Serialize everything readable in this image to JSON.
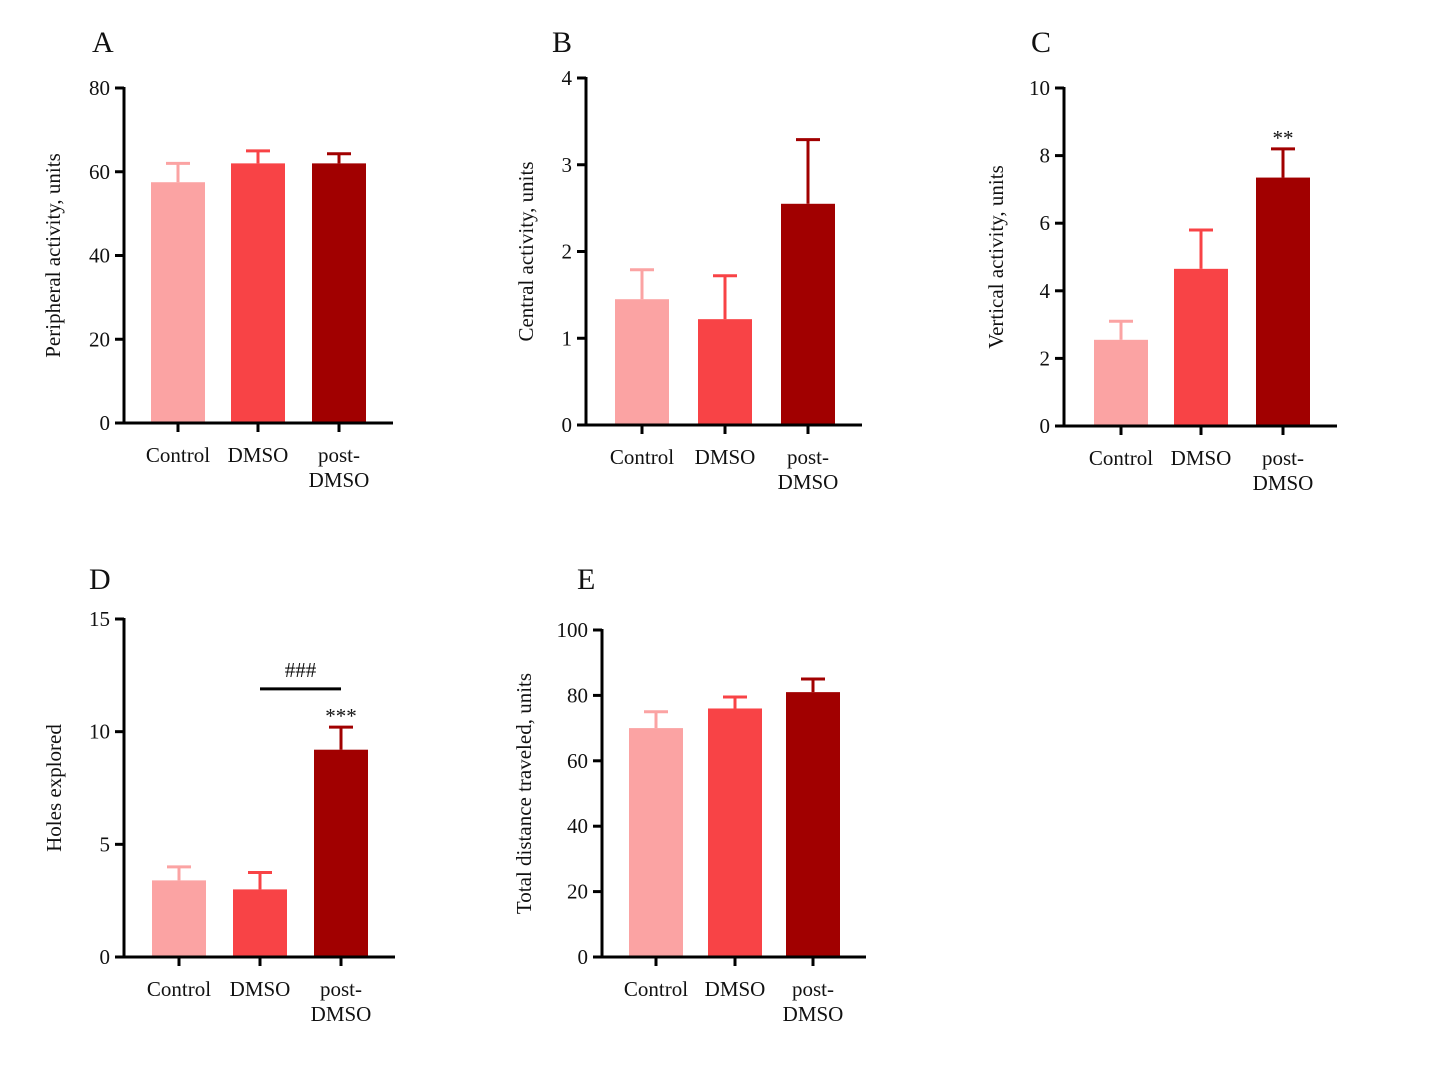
{
  "colors": {
    "Control": "#fba3a3",
    "DMSO": "#f84346",
    "post-DMSO": "#a10000",
    "axis": "#000000"
  },
  "chart_data": [
    {
      "type": "bar",
      "panel": "A",
      "ylabel": "Peripheral activity, units",
      "categories": [
        "Control",
        "DMSO",
        "post-DMSO"
      ],
      "category_lines": [
        [
          "Control"
        ],
        [
          "DMSO"
        ],
        [
          "post-",
          "DMSO"
        ]
      ],
      "values": [
        57.5,
        62,
        62
      ],
      "errors": [
        4.5,
        3,
        2.3
      ],
      "ylim": [
        0,
        80
      ],
      "yticks": [
        0,
        20,
        40,
        60,
        80
      ],
      "annotations": []
    },
    {
      "type": "bar",
      "panel": "B",
      "ylabel": "Central activity, units",
      "categories": [
        "Control",
        "DMSO",
        "post-DMSO"
      ],
      "category_lines": [
        [
          "Control"
        ],
        [
          "DMSO"
        ],
        [
          "post-",
          "DMSO"
        ]
      ],
      "values": [
        1.45,
        1.22,
        2.55
      ],
      "errors": [
        0.34,
        0.5,
        0.74
      ],
      "ylim": [
        0,
        4
      ],
      "yticks": [
        0,
        1,
        2,
        3,
        4
      ],
      "annotations": []
    },
    {
      "type": "bar",
      "panel": "C",
      "ylabel": "Vertical activity, units",
      "categories": [
        "Control",
        "DMSO",
        "post-DMSO"
      ],
      "category_lines": [
        [
          "Control"
        ],
        [
          "DMSO"
        ],
        [
          "post-",
          "DMSO"
        ]
      ],
      "values": [
        2.55,
        4.65,
        7.35
      ],
      "errors": [
        0.55,
        1.15,
        0.85
      ],
      "ylim": [
        0,
        10
      ],
      "yticks": [
        0,
        2,
        4,
        6,
        8,
        10
      ],
      "annotations": [
        {
          "text": "**",
          "bar": 2
        }
      ]
    },
    {
      "type": "bar",
      "panel": "D",
      "ylabel": "Holes explored",
      "categories": [
        "Control",
        "DMSO",
        "post-DMSO"
      ],
      "category_lines": [
        [
          "Control"
        ],
        [
          "DMSO"
        ],
        [
          "post-",
          "DMSO"
        ]
      ],
      "values": [
        3.4,
        3.0,
        9.2
      ],
      "errors": [
        0.6,
        0.75,
        1.0
      ],
      "ylim": [
        0,
        15
      ],
      "yticks": [
        0,
        5,
        10,
        15
      ],
      "annotations": [
        {
          "text": "***",
          "bar": 2
        }
      ],
      "bracket": {
        "text": "###",
        "from": 1,
        "to": 2,
        "y": 11.9
      }
    },
    {
      "type": "bar",
      "panel": "E",
      "ylabel": "Total distance traveled, units",
      "categories": [
        "Control",
        "DMSO",
        "post-DMSO"
      ],
      "category_lines": [
        [
          "Control"
        ],
        [
          "DMSO"
        ],
        [
          "post-",
          "DMSO"
        ]
      ],
      "values": [
        70,
        76,
        81
      ],
      "errors": [
        5,
        3.5,
        4
      ],
      "ylim": [
        0,
        100
      ],
      "yticks": [
        0,
        20,
        40,
        60,
        80,
        100
      ],
      "annotations": []
    }
  ]
}
